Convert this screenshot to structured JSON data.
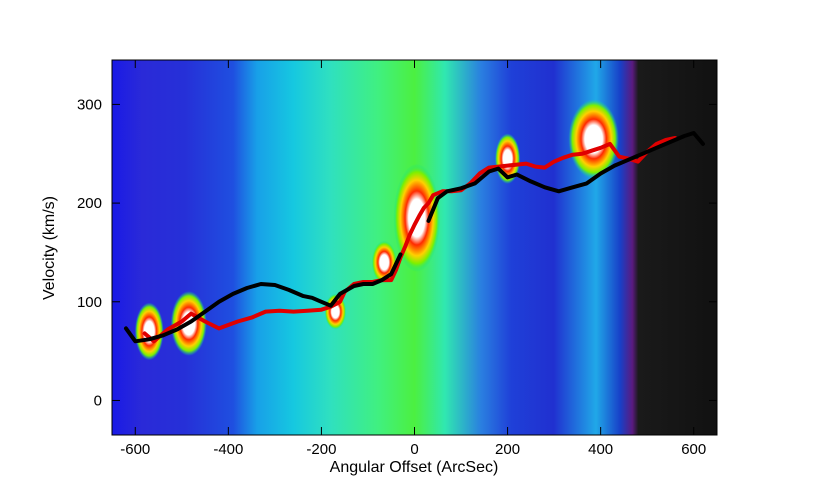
{
  "chart_data": {
    "type": "line",
    "title": "",
    "xlabel": "Angular Offset (ArcSec)",
    "ylabel": "Velocity (km/s)",
    "xlim": [
      -650,
      650
    ],
    "ylim": [
      -35,
      345
    ],
    "xticks": [
      -600,
      -400,
      -200,
      0,
      200,
      400,
      600
    ],
    "yticks": [
      0,
      100,
      200,
      300
    ],
    "grid": false,
    "legend": "none",
    "background": "position-velocity intensity map (blue-green-yellow-red-white colormap, masked dark region at offsets > 450)",
    "series": [
      {
        "color": "#e00000",
        "x": [
          -580,
          -560,
          -530,
          -500,
          -480,
          -450,
          -420,
          -380,
          -350,
          -320,
          -290,
          -260,
          -230,
          -200,
          -180,
          -160,
          -150,
          -130,
          -110,
          -90,
          -70,
          -50,
          -40,
          -30,
          -20,
          -10,
          0,
          10,
          20,
          30,
          40,
          60,
          80,
          100,
          120,
          140,
          160,
          180,
          200,
          220,
          240,
          260,
          280,
          300,
          320,
          340,
          360,
          380,
          400,
          420,
          440,
          460,
          480,
          500,
          520,
          540,
          560
        ],
        "y": [
          68,
          60,
          72,
          80,
          88,
          80,
          73,
          80,
          84,
          90,
          91,
          90,
          91,
          92,
          95,
          100,
          110,
          118,
          120,
          120,
          122,
          122,
          132,
          145,
          156,
          168,
          178,
          187,
          195,
          200,
          208,
          212,
          212,
          213,
          220,
          230,
          236,
          237,
          238,
          239,
          240,
          237,
          236,
          242,
          246,
          249,
          250,
          253,
          256,
          260,
          247,
          245,
          242,
          252,
          260,
          264,
          266
        ]
      },
      {
        "color": "#000000",
        "x": [
          -620,
          -600,
          -570,
          -540,
          -510,
          -480,
          -450,
          -420,
          -390,
          -360,
          -330,
          -300,
          -270,
          -240,
          -220,
          -200,
          -180,
          -160,
          -130,
          -110,
          -90,
          -70,
          -50,
          -30,
          30,
          50,
          70,
          100,
          130,
          160,
          180,
          200,
          220,
          250,
          280,
          310,
          340,
          370,
          400,
          430,
          460,
          490,
          520,
          550,
          580,
          600,
          620
        ],
        "y": [
          73,
          60,
          62,
          66,
          72,
          80,
          90,
          100,
          108,
          114,
          118,
          117,
          112,
          106,
          104,
          100,
          96,
          108,
          116,
          118,
          118,
          122,
          128,
          148,
          182,
          205,
          212,
          215,
          220,
          232,
          235,
          226,
          229,
          222,
          216,
          212,
          216,
          220,
          230,
          238,
          244,
          250,
          256,
          262,
          268,
          271,
          260
        ]
      }
    ]
  }
}
